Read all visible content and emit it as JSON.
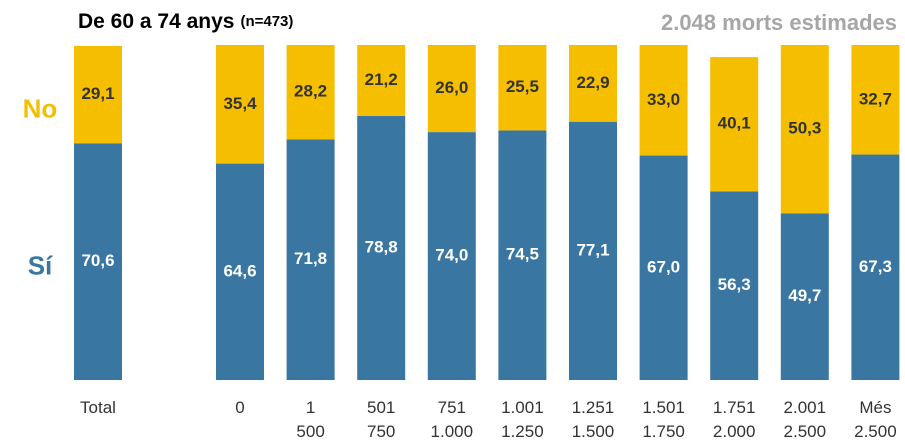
{
  "chart_data": {
    "type": "stacked_bar",
    "title": "De 60 a 74 anys",
    "sample": "(n=473)",
    "annotation": "2.048 morts estimades",
    "categories": [
      [
        "Total"
      ],
      [
        "0"
      ],
      [
        "1",
        "500"
      ],
      [
        "501",
        "750"
      ],
      [
        "751",
        "1.000"
      ],
      [
        "1.001",
        "1.250"
      ],
      [
        "1.251",
        "1.500"
      ],
      [
        "1.501",
        "1.750"
      ],
      [
        "1.751",
        "2.000"
      ],
      [
        "2.001",
        "2.500"
      ],
      [
        "Més",
        "2.500"
      ]
    ],
    "ylim": [
      0,
      100
    ],
    "series": [
      {
        "name": "Sí",
        "color": "#3a76a2",
        "values": [
          70.6,
          64.6,
          71.8,
          78.8,
          74.0,
          74.5,
          77.1,
          67.0,
          56.3,
          49.7,
          67.3
        ],
        "value_labels": [
          "70,6",
          "64,6",
          "71,8",
          "78,8",
          "74,0",
          "74,5",
          "77,1",
          "67,0",
          "56,3",
          "49,7",
          "67,3"
        ]
      },
      {
        "name": "No",
        "color": "#f5bf00",
        "values": [
          29.1,
          35.4,
          28.2,
          21.2,
          26.0,
          25.5,
          22.9,
          33.0,
          40.1,
          50.3,
          32.7
        ],
        "value_labels": [
          "29,1",
          "35,4",
          "28,2",
          "21,2",
          "26,0",
          "25,5",
          "22,9",
          "33,0",
          "40,1",
          "50,3",
          "32,7"
        ]
      }
    ]
  }
}
